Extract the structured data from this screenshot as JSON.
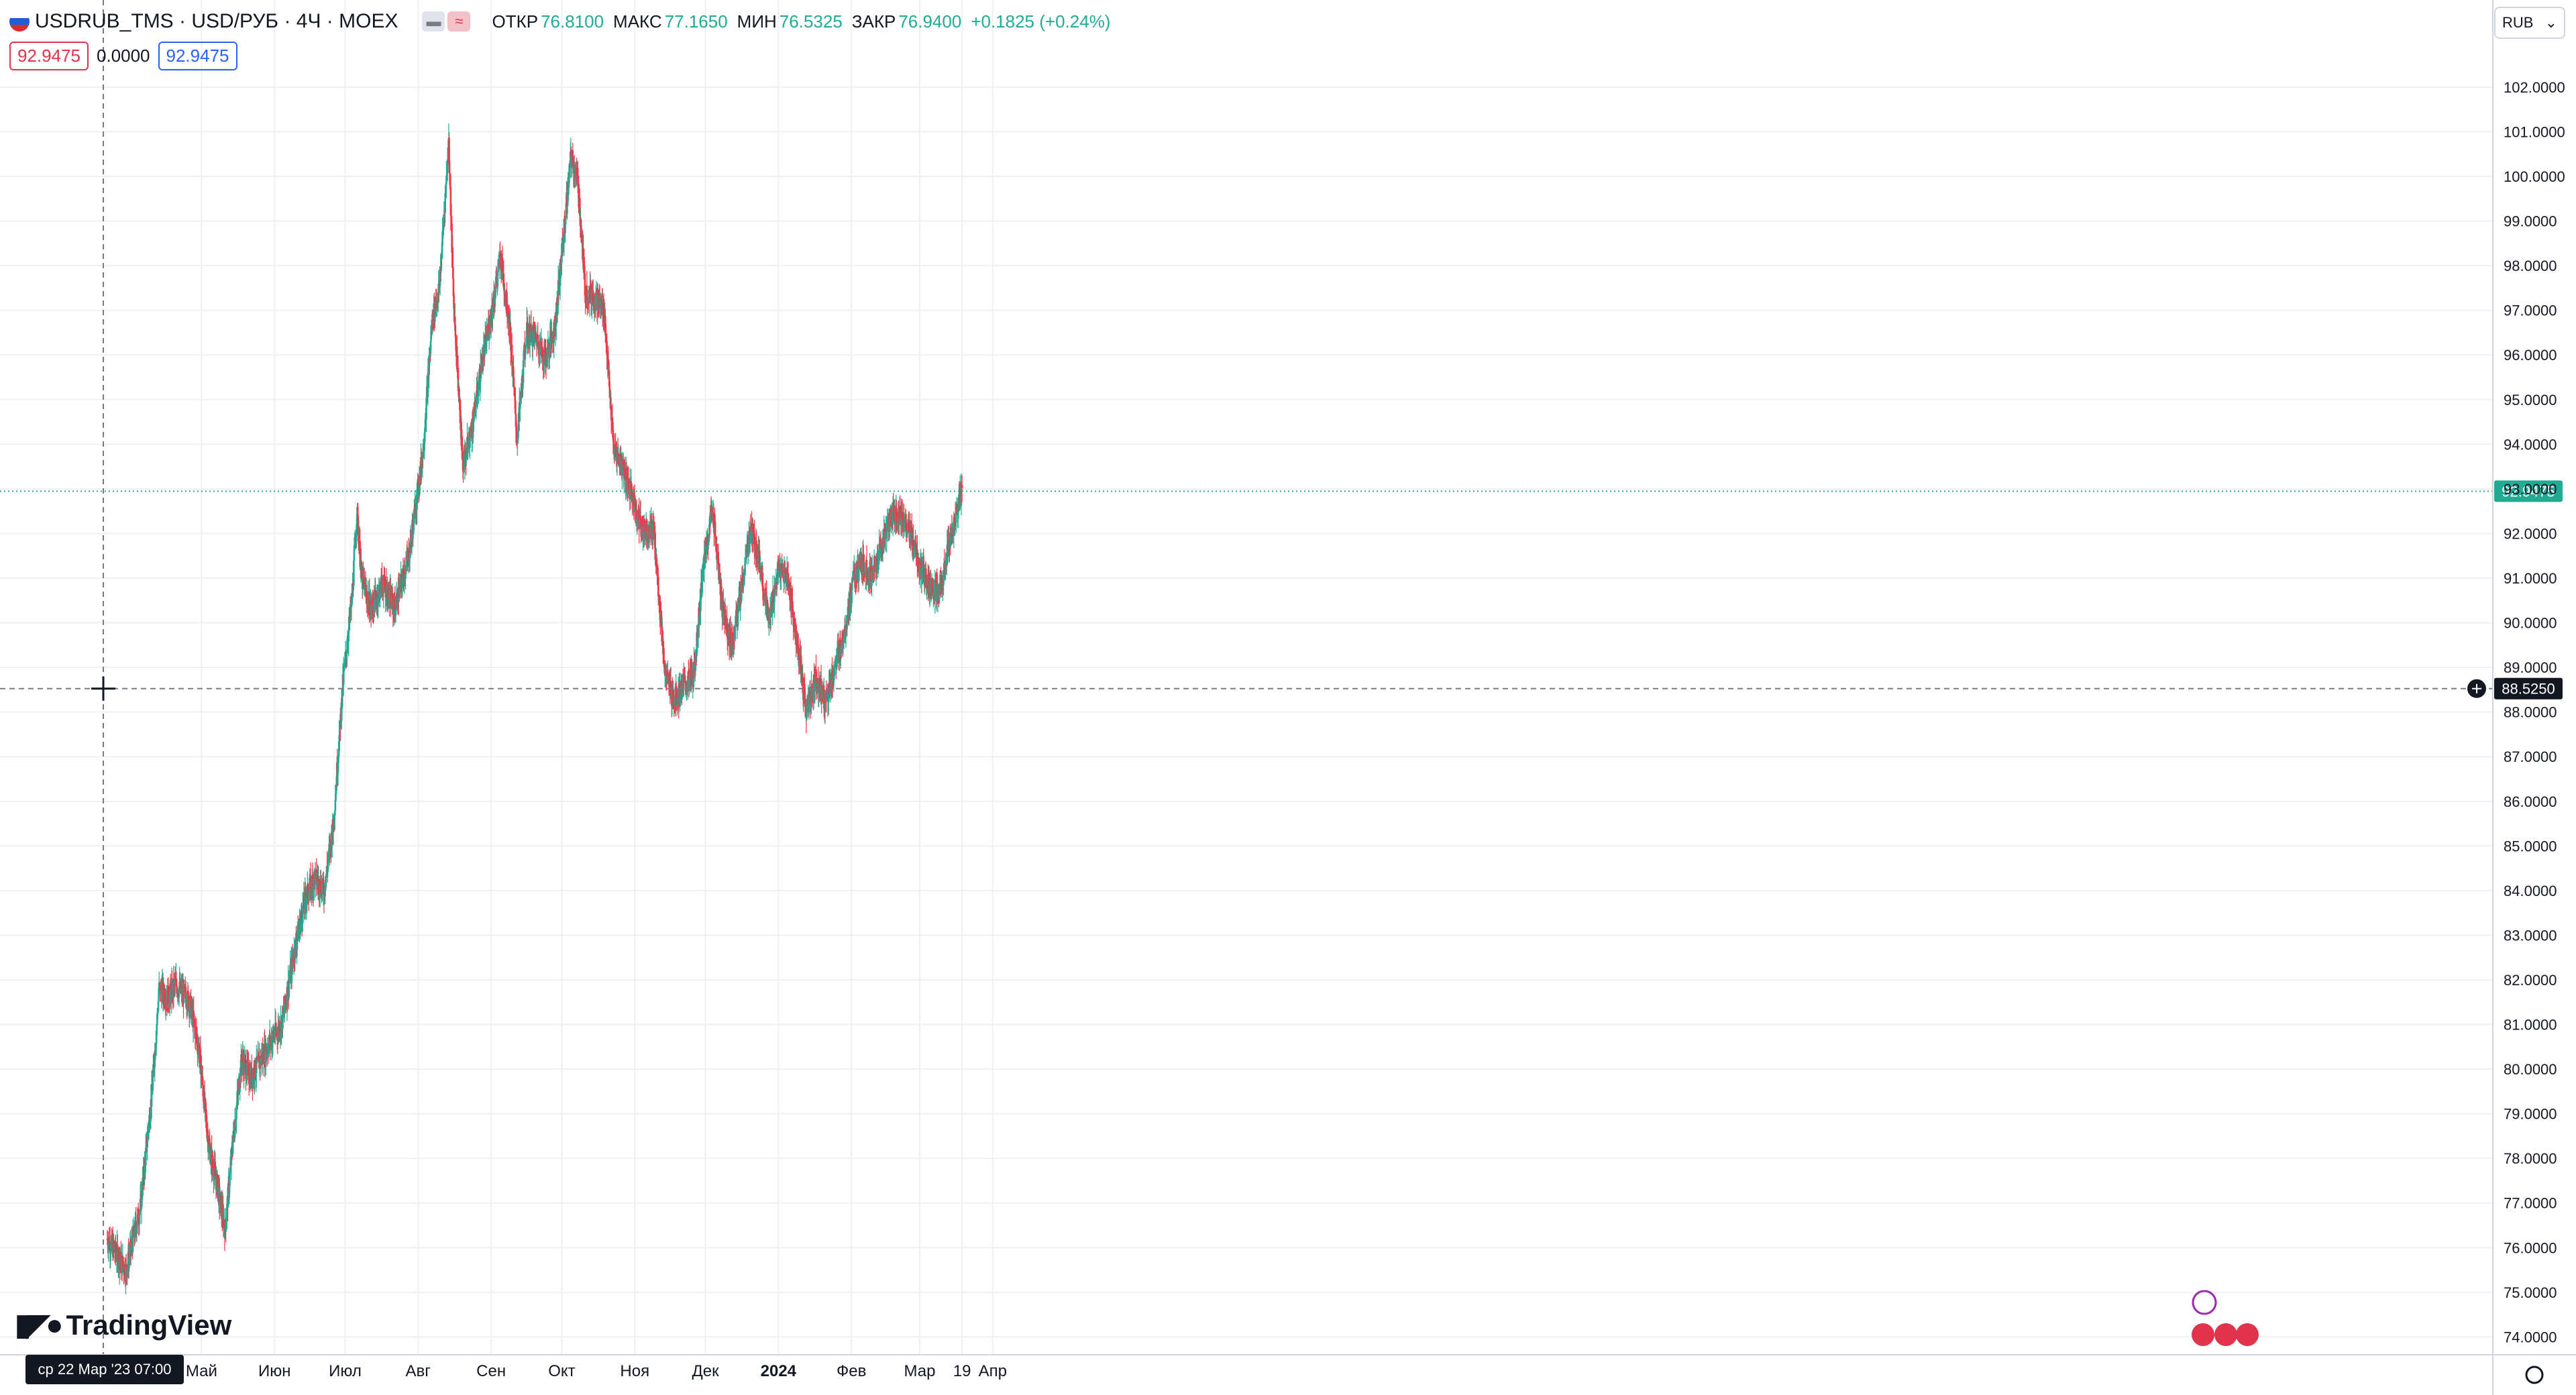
{
  "header": {
    "symbol": "USDRUB_TMS · USD/РУБ · 4Ч · MOEX",
    "open_label": "ОТКР",
    "open": "76.8100",
    "high_label": "МАКС",
    "high": "77.1650",
    "low_label": "МИН",
    "low": "76.5325",
    "close_label": "ЗАКР",
    "close": "76.9400",
    "change": "+0.1825 (+0.24%)"
  },
  "order_row": {
    "sell": "92.9475",
    "spread": "0.0000",
    "buy": "92.9475"
  },
  "currency_button": {
    "label": "RUB"
  },
  "price_axis": {
    "last_price": "92.9475",
    "crosshair_price": "88.5250"
  },
  "time_axis": {
    "crosshair_date": "ср 22 Мар '23   07:00"
  },
  "branding": {
    "logo_text": "TradingView"
  },
  "colors": {
    "up": "#22ab94",
    "down": "#f23645",
    "grid": "#eef0f3",
    "last_line": "#22ab94"
  },
  "chart_data": {
    "type": "candlestick",
    "x_range": [
      "2023-03-22",
      "2024-03-19"
    ],
    "ylim": [
      73.6,
      102.6
    ],
    "y_ticks": [
      "102.0000",
      "101.0000",
      "100.0000",
      "99.0000",
      "98.0000",
      "97.0000",
      "96.0000",
      "95.0000",
      "94.0000",
      "93.0000",
      "92.0000",
      "91.0000",
      "90.0000",
      "89.0000",
      "88.0000",
      "87.0000",
      "86.0000",
      "85.0000",
      "84.0000",
      "83.0000",
      "82.0000",
      "81.0000",
      "80.0000",
      "79.0000",
      "78.0000",
      "77.0000",
      "76.0000",
      "75.0000",
      "74.0000"
    ],
    "x_ticks": [
      {
        "label": "Май",
        "date": "2023-05-01"
      },
      {
        "label": "Июн",
        "date": "2023-06-01"
      },
      {
        "label": "Июл",
        "date": "2023-07-01"
      },
      {
        "label": "Авг",
        "date": "2023-08-01"
      },
      {
        "label": "Сен",
        "date": "2023-09-01"
      },
      {
        "label": "Окт",
        "date": "2023-10-01"
      },
      {
        "label": "Ноя",
        "date": "2023-11-01"
      },
      {
        "label": "Дек",
        "date": "2023-12-01"
      },
      {
        "label": "2024",
        "date": "2024-01-01"
      },
      {
        "label": "Фев",
        "date": "2024-02-01"
      },
      {
        "label": "Мар",
        "date": "2024-03-01"
      },
      {
        "label": "19",
        "date": "2024-03-19"
      },
      {
        "label": "Апр",
        "date": "2024-04-01"
      }
    ],
    "price_path": [
      [
        "2023-03-22",
        76.2
      ],
      [
        "2023-03-30",
        75.5
      ],
      [
        "2023-04-05",
        76.9
      ],
      [
        "2023-04-10",
        79.5
      ],
      [
        "2023-04-13",
        81.8
      ],
      [
        "2023-04-17",
        81.6
      ],
      [
        "2023-04-20",
        81.9
      ],
      [
        "2023-04-26",
        81.5
      ],
      [
        "2023-04-30",
        80.4
      ],
      [
        "2023-05-04",
        78.3
      ],
      [
        "2023-05-08",
        77.3
      ],
      [
        "2023-05-11",
        76.4
      ],
      [
        "2023-05-14",
        78.2
      ],
      [
        "2023-05-18",
        80.2
      ],
      [
        "2023-05-22",
        79.8
      ],
      [
        "2023-05-30",
        80.6
      ],
      [
        "2023-06-04",
        81.0
      ],
      [
        "2023-06-10",
        82.8
      ],
      [
        "2023-06-14",
        83.8
      ],
      [
        "2023-06-18",
        84.3
      ],
      [
        "2023-06-22",
        84.0
      ],
      [
        "2023-06-26",
        85.5
      ],
      [
        "2023-06-30",
        88.6
      ],
      [
        "2023-07-04",
        90.6
      ],
      [
        "2023-07-06",
        92.5
      ],
      [
        "2023-07-08",
        91.0
      ],
      [
        "2023-07-12",
        90.3
      ],
      [
        "2023-07-17",
        90.9
      ],
      [
        "2023-07-22",
        90.3
      ],
      [
        "2023-07-28",
        91.5
      ],
      [
        "2023-08-03",
        93.8
      ],
      [
        "2023-08-07",
        96.8
      ],
      [
        "2023-08-10",
        97.5
      ],
      [
        "2023-08-14",
        100.8
      ],
      [
        "2023-08-16",
        97.3
      ],
      [
        "2023-08-20",
        93.5
      ],
      [
        "2023-08-24",
        94.4
      ],
      [
        "2023-08-28",
        95.8
      ],
      [
        "2023-09-01",
        96.9
      ],
      [
        "2023-09-05",
        98.2
      ],
      [
        "2023-09-09",
        96.6
      ],
      [
        "2023-09-12",
        94.1
      ],
      [
        "2023-09-16",
        96.5
      ],
      [
        "2023-09-20",
        96.4
      ],
      [
        "2023-09-24",
        95.9
      ],
      [
        "2023-09-28",
        96.6
      ],
      [
        "2023-10-02",
        98.8
      ],
      [
        "2023-10-05",
        100.5
      ],
      [
        "2023-10-08",
        99.8
      ],
      [
        "2023-10-11",
        97.4
      ],
      [
        "2023-10-15",
        97.3
      ],
      [
        "2023-10-19",
        97.0
      ],
      [
        "2023-10-23",
        93.9
      ],
      [
        "2023-10-27",
        93.5
      ],
      [
        "2023-10-31",
        92.8
      ],
      [
        "2023-11-04",
        92.1
      ],
      [
        "2023-11-09",
        92.1
      ],
      [
        "2023-11-14",
        88.8
      ],
      [
        "2023-11-18",
        88.3
      ],
      [
        "2023-11-22",
        88.6
      ],
      [
        "2023-11-26",
        88.8
      ],
      [
        "2023-11-30",
        91.2
      ],
      [
        "2023-12-04",
        92.6
      ],
      [
        "2023-12-08",
        90.4
      ],
      [
        "2023-12-12",
        89.5
      ],
      [
        "2023-12-16",
        90.6
      ],
      [
        "2023-12-20",
        92.1
      ],
      [
        "2023-12-24",
        91.4
      ],
      [
        "2023-12-28",
        90.0
      ],
      [
        "2024-01-01",
        91.2
      ],
      [
        "2024-01-05",
        91.0
      ],
      [
        "2024-01-09",
        89.5
      ],
      [
        "2024-01-13",
        88.0
      ],
      [
        "2024-01-17",
        88.8
      ],
      [
        "2024-01-21",
        88.2
      ],
      [
        "2024-01-25",
        89.0
      ],
      [
        "2024-01-29",
        89.8
      ],
      [
        "2024-02-02",
        91.0
      ],
      [
        "2024-02-06",
        91.3
      ],
      [
        "2024-02-10",
        91.0
      ],
      [
        "2024-02-14",
        91.8
      ],
      [
        "2024-02-18",
        92.4
      ],
      [
        "2024-02-22",
        92.4
      ],
      [
        "2024-02-26",
        92.0
      ],
      [
        "2024-03-01",
        91.2
      ],
      [
        "2024-03-05",
        90.9
      ],
      [
        "2024-03-09",
        90.6
      ],
      [
        "2024-03-13",
        91.6
      ],
      [
        "2024-03-19",
        92.95
      ]
    ]
  }
}
